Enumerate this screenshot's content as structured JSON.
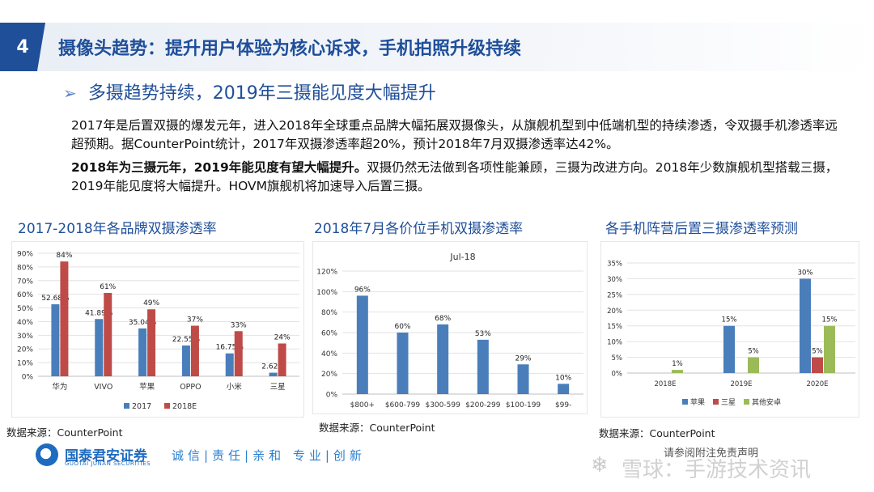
{
  "header": {
    "slide_number": "4",
    "title": "摄像头趋势：提升用户体验为核心诉求，手机拍照升级持续"
  },
  "subtitle": "多摄趋势持续，2019年三摄能见度大幅提升",
  "paragraphs": {
    "p1": "2017年是后置双摄的爆发元年，进入2018年全球重点品牌大幅拓展双摄像头，从旗舰机型到中低端机型的持续渗透，令双摄手机渗透率远超预期。据CounterPoint统计，2017年双摄渗透率超20%，预计2018年7月双摄渗透率达42%。",
    "p2_bold": "2018年为三摄元年，2019年能见度有望大幅提升。",
    "p2_rest": "双摄仍然无法做到各项性能兼顾，三摄为改进方向。2018年少数旗舰机型搭载三摄，2019年能见度将大幅提升。HOVM旗舰机将加速导入后置三摄。"
  },
  "colors": {
    "accent": "#1f4f99",
    "series_blue": "#4a7ebb",
    "series_red": "#be4b48",
    "series_green": "#9bbb59"
  },
  "chart_data": [
    {
      "type": "bar",
      "title": "2017-2018年各品牌双摄渗透率",
      "categories": [
        "华为",
        "VIVO",
        "苹果",
        "OPPO",
        "小米",
        "三星"
      ],
      "series": [
        {
          "name": "2017",
          "values": [
            52.68,
            41.89,
            35.04,
            22.55,
            16.75,
            2.62
          ],
          "labels": [
            "52.68%",
            "41.89%",
            "35.04%",
            "22.55%",
            "16.75%",
            "2.62%"
          ]
        },
        {
          "name": "2018E",
          "values": [
            84,
            61,
            49,
            37,
            33,
            24
          ],
          "labels": [
            "84%",
            "61%",
            "49%",
            "37%",
            "33%",
            "24%"
          ]
        }
      ],
      "ylim": [
        0,
        90
      ],
      "yticks": [
        "0%",
        "10%",
        "20%",
        "30%",
        "40%",
        "50%",
        "60%",
        "70%",
        "80%",
        "90%"
      ],
      "legend": "bottom",
      "source": "数据来源：CounterPoint"
    },
    {
      "type": "bar",
      "title": "2018年7月各价位手机双摄渗透率",
      "chart_title": "Jul-18",
      "categories": [
        "$800+",
        "$600-799",
        "$300-599",
        "$200-299",
        "$100-199",
        "$99-"
      ],
      "series": [
        {
          "values": [
            96,
            60,
            68,
            53,
            29,
            10
          ],
          "labels": [
            "96%",
            "60%",
            "68%",
            "53%",
            "29%",
            "10%"
          ]
        }
      ],
      "ylim": [
        0,
        120
      ],
      "yticks": [
        "0%",
        "20%",
        "40%",
        "60%",
        "80%",
        "100%",
        "120%"
      ],
      "source": "数据来源：CounterPoint"
    },
    {
      "type": "bar",
      "title": "各手机阵营后置三摄渗透率预测",
      "categories": [
        "2018E",
        "2019E",
        "2020E"
      ],
      "series": [
        {
          "name": "苹果",
          "values": [
            0,
            15,
            30
          ],
          "labels": [
            "",
            "15%",
            "30%"
          ]
        },
        {
          "name": "三星",
          "values": [
            0,
            0,
            5
          ],
          "labels": [
            "",
            "",
            "5%"
          ]
        },
        {
          "name": "其他安卓",
          "values": [
            1,
            5,
            15
          ],
          "labels": [
            "1%",
            "5%",
            "15%"
          ]
        }
      ],
      "ylim": [
        0,
        35
      ],
      "yticks": [
        "0%",
        "5%",
        "10%",
        "15%",
        "20%",
        "25%",
        "30%",
        "35%"
      ],
      "legend": "bottom",
      "source": "数据来源：CounterPoint"
    }
  ],
  "footer": {
    "company": "国泰君安证券",
    "company_en": "GUOTAI JUNAN SECURITIES",
    "slogan": "诚信|责任|亲和 专业|创新",
    "note": "请参阅附注免责声明",
    "watermark": "雪球：手游技术资讯"
  }
}
